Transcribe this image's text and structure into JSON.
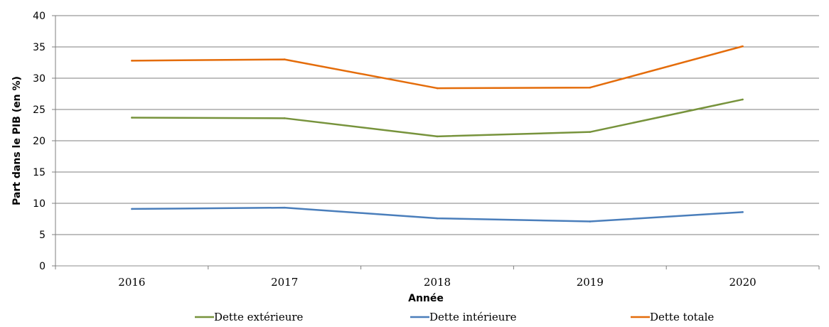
{
  "chart_data": {
    "type": "line",
    "title": "",
    "xlabel": "Année",
    "ylabel": "Part dans le PIB (en %)",
    "categories": [
      "2016",
      "2017",
      "2018",
      "2019",
      "2020"
    ],
    "ylim": [
      0,
      40
    ],
    "yticks": [
      0,
      5,
      10,
      15,
      20,
      25,
      30,
      35,
      40
    ],
    "grid": true,
    "legend_position": "bottom",
    "series": [
      {
        "name": "Dette extérieure",
        "color": "#77933c",
        "values": [
          23.7,
          23.6,
          20.7,
          21.4,
          26.6
        ]
      },
      {
        "name": "Dette intérieure",
        "color": "#4a7ebb",
        "values": [
          9.1,
          9.3,
          7.6,
          7.1,
          8.6
        ]
      },
      {
        "name": "Dette totale",
        "color": "#e46c0a",
        "values": [
          32.8,
          33.0,
          28.4,
          28.5,
          35.1
        ]
      }
    ]
  }
}
